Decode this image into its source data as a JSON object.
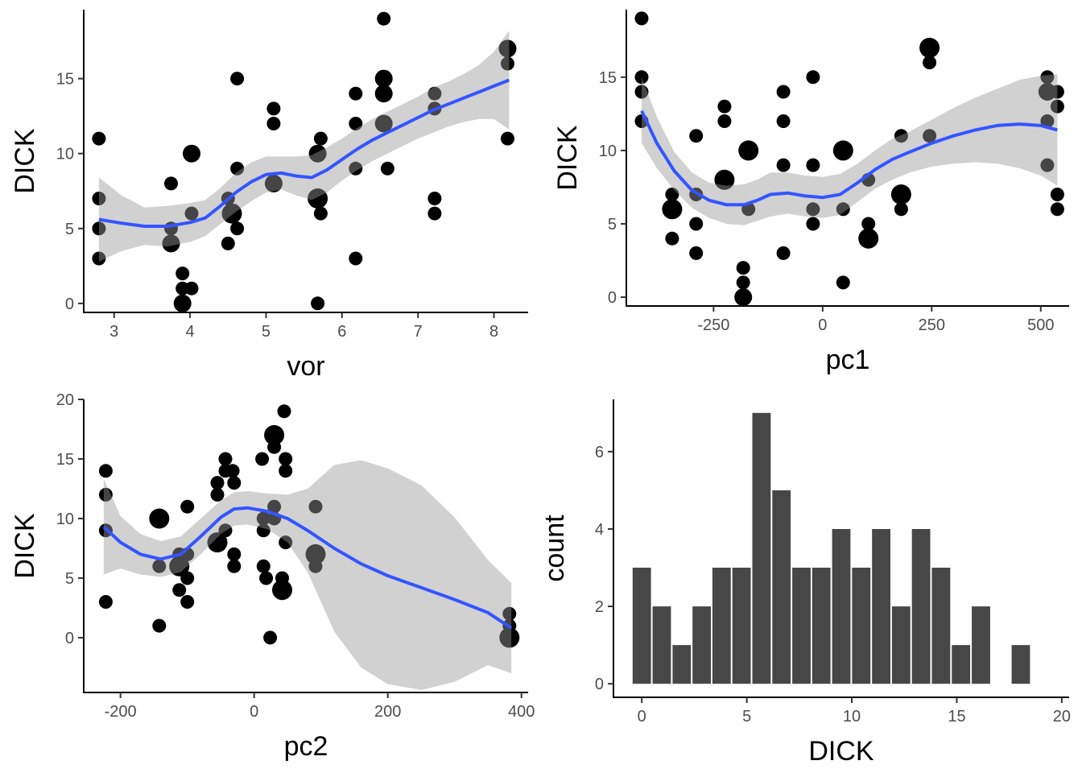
{
  "chart_data": [
    {
      "type": "scatter",
      "xlabel": "vor",
      "ylabel": "DICK",
      "xlim": [
        2.6,
        8.45
      ],
      "ylim": [
        -0.6,
        19.6
      ],
      "xticks": [
        3,
        4,
        5,
        6,
        7,
        8
      ],
      "yticks": [
        0,
        5,
        10,
        15
      ],
      "smooth_line_color": "#3355ff",
      "points": [
        {
          "x": 2.8,
          "y": 11,
          "n": 1
        },
        {
          "x": 2.8,
          "y": 7,
          "n": 1
        },
        {
          "x": 2.8,
          "y": 5,
          "n": 1
        },
        {
          "x": 2.8,
          "y": 3,
          "n": 1
        },
        {
          "x": 3.75,
          "y": 8,
          "n": 1
        },
        {
          "x": 3.75,
          "y": 5,
          "n": 1
        },
        {
          "x": 3.75,
          "y": 4,
          "n": 2
        },
        {
          "x": 3.9,
          "y": 2,
          "n": 1
        },
        {
          "x": 3.9,
          "y": 1,
          "n": 1
        },
        {
          "x": 3.9,
          "y": 0,
          "n": 2
        },
        {
          "x": 4.02,
          "y": 10,
          "n": 2
        },
        {
          "x": 4.02,
          "y": 6,
          "n": 1
        },
        {
          "x": 4.02,
          "y": 1,
          "n": 1
        },
        {
          "x": 4.5,
          "y": 7,
          "n": 1
        },
        {
          "x": 4.5,
          "y": 4,
          "n": 1
        },
        {
          "x": 4.55,
          "y": 6,
          "n": 3
        },
        {
          "x": 4.62,
          "y": 15,
          "n": 1
        },
        {
          "x": 4.62,
          "y": 9,
          "n": 1
        },
        {
          "x": 4.62,
          "y": 5,
          "n": 1
        },
        {
          "x": 5.1,
          "y": 13,
          "n": 1
        },
        {
          "x": 5.1,
          "y": 12,
          "n": 1
        },
        {
          "x": 5.1,
          "y": 8,
          "n": 2
        },
        {
          "x": 5.68,
          "y": 10,
          "n": 2
        },
        {
          "x": 5.68,
          "y": 7,
          "n": 3
        },
        {
          "x": 5.68,
          "y": 0,
          "n": 1
        },
        {
          "x": 5.72,
          "y": 11,
          "n": 1
        },
        {
          "x": 5.72,
          "y": 6,
          "n": 1
        },
        {
          "x": 6.18,
          "y": 14,
          "n": 1
        },
        {
          "x": 6.18,
          "y": 12,
          "n": 1
        },
        {
          "x": 6.18,
          "y": 9,
          "n": 1
        },
        {
          "x": 6.18,
          "y": 3,
          "n": 1
        },
        {
          "x": 6.55,
          "y": 19,
          "n": 1
        },
        {
          "x": 6.55,
          "y": 15,
          "n": 2
        },
        {
          "x": 6.55,
          "y": 14,
          "n": 2
        },
        {
          "x": 6.55,
          "y": 12,
          "n": 2
        },
        {
          "x": 6.6,
          "y": 9,
          "n": 1
        },
        {
          "x": 7.22,
          "y": 14,
          "n": 1
        },
        {
          "x": 7.22,
          "y": 13,
          "n": 1
        },
        {
          "x": 7.22,
          "y": 7,
          "n": 1
        },
        {
          "x": 7.22,
          "y": 6,
          "n": 1
        },
        {
          "x": 8.18,
          "y": 17,
          "n": 2
        },
        {
          "x": 8.18,
          "y": 16,
          "n": 1
        },
        {
          "x": 8.18,
          "y": 11,
          "n": 1
        }
      ],
      "smooth": {
        "x": [
          2.8,
          3.1,
          3.4,
          3.7,
          4.0,
          4.2,
          4.4,
          4.6,
          4.8,
          5.0,
          5.2,
          5.4,
          5.6,
          5.8,
          6.0,
          6.2,
          6.4,
          6.6,
          6.8,
          7.0,
          7.2,
          7.4,
          7.6,
          7.8,
          8.0,
          8.2
        ],
        "y": [
          5.6,
          5.35,
          5.15,
          5.15,
          5.4,
          5.7,
          6.5,
          7.4,
          8.1,
          8.6,
          8.7,
          8.5,
          8.4,
          8.9,
          9.6,
          10.3,
          10.9,
          11.4,
          11.9,
          12.4,
          12.9,
          13.3,
          13.7,
          14.1,
          14.5,
          14.9
        ],
        "lower": [
          2.8,
          3.5,
          3.9,
          3.8,
          4.1,
          4.5,
          5.3,
          6.1,
          6.8,
          7.4,
          7.6,
          7.2,
          6.9,
          7.4,
          8.2,
          8.9,
          9.5,
          10.0,
          10.5,
          11.0,
          11.4,
          11.8,
          12.1,
          12.3,
          12.3,
          11.6
        ],
        "upper": [
          8.4,
          7.2,
          6.4,
          6.5,
          6.7,
          6.9,
          7.7,
          8.7,
          9.4,
          9.8,
          9.8,
          9.8,
          9.9,
          10.4,
          11.0,
          11.7,
          12.3,
          12.8,
          13.3,
          13.8,
          14.4,
          14.8,
          15.3,
          15.9,
          16.8,
          18.2
        ]
      }
    },
    {
      "type": "scatter",
      "xlabel": "pc1",
      "ylabel": "DICK",
      "xlim": [
        -450,
        565
      ],
      "ylim": [
        -0.6,
        19.6
      ],
      "xticks": [
        -250,
        0,
        250,
        500
      ],
      "yticks": [
        0,
        5,
        10,
        15
      ],
      "smooth_line_color": "#3355ff",
      "points": [
        {
          "x": -415,
          "y": 19,
          "n": 1
        },
        {
          "x": -415,
          "y": 15,
          "n": 1
        },
        {
          "x": -415,
          "y": 14,
          "n": 1
        },
        {
          "x": -415,
          "y": 12,
          "n": 1
        },
        {
          "x": -345,
          "y": 7,
          "n": 1
        },
        {
          "x": -345,
          "y": 6,
          "n": 3
        },
        {
          "x": -345,
          "y": 4,
          "n": 1
        },
        {
          "x": -290,
          "y": 11,
          "n": 1
        },
        {
          "x": -290,
          "y": 7,
          "n": 1
        },
        {
          "x": -290,
          "y": 5,
          "n": 1
        },
        {
          "x": -290,
          "y": 3,
          "n": 1
        },
        {
          "x": -225,
          "y": 13,
          "n": 1
        },
        {
          "x": -225,
          "y": 12,
          "n": 1
        },
        {
          "x": -225,
          "y": 8,
          "n": 3
        },
        {
          "x": -182,
          "y": 2,
          "n": 1
        },
        {
          "x": -182,
          "y": 1,
          "n": 1
        },
        {
          "x": -182,
          "y": 0,
          "n": 2
        },
        {
          "x": -170,
          "y": 10,
          "n": 3
        },
        {
          "x": -170,
          "y": 6,
          "n": 1
        },
        {
          "x": -90,
          "y": 14,
          "n": 1
        },
        {
          "x": -90,
          "y": 12,
          "n": 1
        },
        {
          "x": -90,
          "y": 9,
          "n": 1
        },
        {
          "x": -90,
          "y": 3,
          "n": 1
        },
        {
          "x": -22,
          "y": 15,
          "n": 1
        },
        {
          "x": -22,
          "y": 9,
          "n": 1
        },
        {
          "x": -22,
          "y": 6,
          "n": 1
        },
        {
          "x": -22,
          "y": 5,
          "n": 1
        },
        {
          "x": 47,
          "y": 10,
          "n": 3
        },
        {
          "x": 47,
          "y": 6,
          "n": 1
        },
        {
          "x": 47,
          "y": 1,
          "n": 1
        },
        {
          "x": 105,
          "y": 8,
          "n": 1
        },
        {
          "x": 105,
          "y": 5,
          "n": 1
        },
        {
          "x": 105,
          "y": 4,
          "n": 3
        },
        {
          "x": 180,
          "y": 11,
          "n": 1
        },
        {
          "x": 180,
          "y": 7,
          "n": 3
        },
        {
          "x": 180,
          "y": 6,
          "n": 1
        },
        {
          "x": 245,
          "y": 17,
          "n": 3
        },
        {
          "x": 245,
          "y": 16,
          "n": 1
        },
        {
          "x": 245,
          "y": 11,
          "n": 1
        },
        {
          "x": 515,
          "y": 15,
          "n": 1
        },
        {
          "x": 515,
          "y": 14,
          "n": 2
        },
        {
          "x": 515,
          "y": 12,
          "n": 1
        },
        {
          "x": 515,
          "y": 9,
          "n": 1
        },
        {
          "x": 538,
          "y": 14,
          "n": 1
        },
        {
          "x": 538,
          "y": 13,
          "n": 1
        },
        {
          "x": 538,
          "y": 7,
          "n": 1
        },
        {
          "x": 538,
          "y": 6,
          "n": 1
        }
      ],
      "smooth": {
        "x": [
          -415,
          -380,
          -340,
          -300,
          -260,
          -220,
          -180,
          -150,
          -120,
          -80,
          -40,
          0,
          40,
          80,
          120,
          160,
          200,
          250,
          300,
          350,
          400,
          450,
          500,
          538
        ],
        "y": [
          12.7,
          10.5,
          8.6,
          7.3,
          6.6,
          6.3,
          6.3,
          6.6,
          7.0,
          7.1,
          6.9,
          6.8,
          7.0,
          7.8,
          8.7,
          9.4,
          9.9,
          10.5,
          11.0,
          11.4,
          11.7,
          11.8,
          11.7,
          11.4
        ],
        "lower": [
          10.5,
          8.8,
          7.3,
          6.1,
          5.4,
          5.0,
          4.9,
          5.2,
          5.5,
          5.7,
          5.5,
          5.4,
          5.6,
          6.5,
          7.4,
          8.0,
          8.5,
          8.9,
          9.1,
          9.2,
          9.1,
          8.8,
          8.3,
          7.6
        ],
        "upper": [
          15.0,
          12.3,
          9.9,
          8.5,
          7.8,
          7.6,
          7.7,
          8.0,
          8.5,
          8.5,
          8.3,
          8.2,
          8.4,
          9.1,
          10.0,
          10.8,
          11.3,
          12.1,
          12.9,
          13.6,
          14.2,
          14.8,
          15.1,
          15.2
        ]
      }
    },
    {
      "type": "scatter",
      "xlabel": "pc2",
      "ylabel": "DICK",
      "xlim": [
        -255,
        410
      ],
      "ylim": [
        -4.6,
        20.0
      ],
      "xticks": [
        -200,
        0,
        200,
        400
      ],
      "yticks": [
        0,
        5,
        10,
        15,
        20
      ],
      "smooth_line_color": "#3355ff",
      "points": [
        {
          "x": -222,
          "y": 14,
          "n": 1
        },
        {
          "x": -222,
          "y": 12,
          "n": 1
        },
        {
          "x": -222,
          "y": 9,
          "n": 1
        },
        {
          "x": -222,
          "y": 3,
          "n": 1
        },
        {
          "x": -142,
          "y": 10,
          "n": 3
        },
        {
          "x": -142,
          "y": 6,
          "n": 1
        },
        {
          "x": -142,
          "y": 1,
          "n": 1
        },
        {
          "x": -112,
          "y": 7,
          "n": 1
        },
        {
          "x": -112,
          "y": 6,
          "n": 3
        },
        {
          "x": -112,
          "y": 4,
          "n": 1
        },
        {
          "x": -100,
          "y": 11,
          "n": 1
        },
        {
          "x": -100,
          "y": 7,
          "n": 1
        },
        {
          "x": -100,
          "y": 5,
          "n": 1
        },
        {
          "x": -100,
          "y": 3,
          "n": 1
        },
        {
          "x": -55,
          "y": 13,
          "n": 1
        },
        {
          "x": -55,
          "y": 12,
          "n": 1
        },
        {
          "x": -55,
          "y": 8,
          "n": 3
        },
        {
          "x": -43,
          "y": 15,
          "n": 1
        },
        {
          "x": -43,
          "y": 14,
          "n": 1
        },
        {
          "x": -43,
          "y": 9,
          "n": 1
        },
        {
          "x": -32,
          "y": 14,
          "n": 1
        },
        {
          "x": -30,
          "y": 13,
          "n": 1
        },
        {
          "x": -30,
          "y": 7,
          "n": 1
        },
        {
          "x": -30,
          "y": 6,
          "n": 1
        },
        {
          "x": 12,
          "y": 15,
          "n": 1
        },
        {
          "x": 14,
          "y": 10,
          "n": 1
        },
        {
          "x": 14,
          "y": 9,
          "n": 1
        },
        {
          "x": 14,
          "y": 6,
          "n": 1
        },
        {
          "x": 18,
          "y": 5,
          "n": 1
        },
        {
          "x": 24,
          "y": 0,
          "n": 1
        },
        {
          "x": 30,
          "y": 17,
          "n": 3
        },
        {
          "x": 30,
          "y": 16,
          "n": 1
        },
        {
          "x": 30,
          "y": 11,
          "n": 1
        },
        {
          "x": 30,
          "y": 10,
          "n": 1
        },
        {
          "x": 45,
          "y": 19,
          "n": 1
        },
        {
          "x": 47,
          "y": 15,
          "n": 1
        },
        {
          "x": 47,
          "y": 14,
          "n": 1
        },
        {
          "x": 47,
          "y": 8,
          "n": 1
        },
        {
          "x": 42,
          "y": 5,
          "n": 1
        },
        {
          "x": 42,
          "y": 4,
          "n": 3
        },
        {
          "x": 92,
          "y": 11,
          "n": 1
        },
        {
          "x": 92,
          "y": 7,
          "n": 3
        },
        {
          "x": 92,
          "y": 6,
          "n": 1
        },
        {
          "x": 382,
          "y": 2,
          "n": 1
        },
        {
          "x": 382,
          "y": 1,
          "n": 1
        },
        {
          "x": 382,
          "y": 0,
          "n": 3
        }
      ],
      "smooth": {
        "x": [
          -225,
          -200,
          -170,
          -140,
          -110,
          -80,
          -50,
          -30,
          -10,
          20,
          50,
          80,
          120,
          160,
          200,
          250,
          300,
          350,
          385
        ],
        "y": [
          9.3,
          8.0,
          7.0,
          6.6,
          7.0,
          8.5,
          10.1,
          10.8,
          10.9,
          10.6,
          10.0,
          9.0,
          7.5,
          6.2,
          5.2,
          4.2,
          3.2,
          2.1,
          0.8
        ],
        "lower": [
          5.3,
          5.8,
          5.3,
          5.1,
          5.5,
          7.0,
          8.7,
          9.4,
          9.5,
          9.1,
          8.0,
          5.5,
          0.5,
          -2.5,
          -3.9,
          -4.4,
          -3.7,
          -2.3,
          -3.0
        ],
        "upper": [
          13.3,
          10.2,
          8.7,
          8.1,
          8.5,
          10.0,
          11.5,
          12.2,
          12.3,
          12.1,
          12.0,
          12.5,
          14.5,
          14.9,
          14.2,
          12.8,
          10.1,
          6.5,
          4.6
        ]
      }
    },
    {
      "type": "bar",
      "subtype": "histogram",
      "xlabel": "DICK",
      "ylabel": "count",
      "xlim": [
        -1.35,
        20.35
      ],
      "ylim": [
        -0.35,
        7.35
      ],
      "xticks": [
        0,
        5,
        10,
        15,
        20
      ],
      "yticks": [
        0,
        2,
        4,
        6
      ],
      "bar_color": "#474747",
      "bin_width": 0.95,
      "bin_centers": [
        0,
        0.95,
        1.9,
        2.85,
        3.8,
        4.75,
        5.7,
        6.65,
        7.6,
        8.55,
        9.5,
        10.45,
        11.4,
        12.35,
        13.3,
        14.25,
        15.2,
        16.15,
        17.1,
        18.05,
        19.0
      ],
      "values": [
        3,
        2,
        1,
        2,
        3,
        3,
        7,
        5,
        3,
        3,
        4,
        3,
        4,
        2,
        4,
        3,
        1,
        2,
        0,
        1,
        0
      ]
    }
  ]
}
